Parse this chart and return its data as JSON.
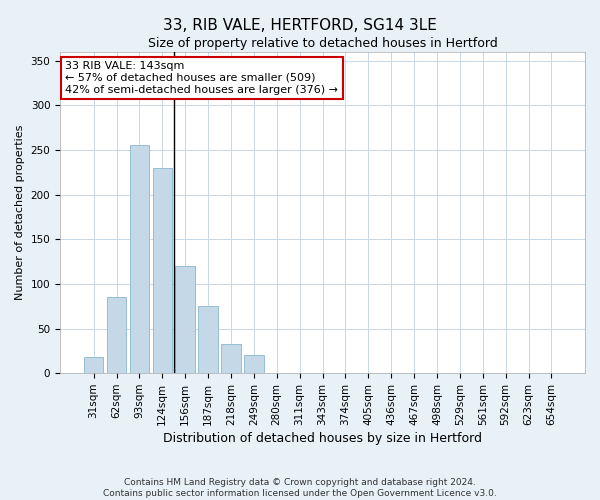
{
  "title": "33, RIB VALE, HERTFORD, SG14 3LE",
  "subtitle": "Size of property relative to detached houses in Hertford",
  "xlabel": "Distribution of detached houses by size in Hertford",
  "ylabel": "Number of detached properties",
  "categories": [
    "31sqm",
    "62sqm",
    "93sqm",
    "124sqm",
    "156sqm",
    "187sqm",
    "218sqm",
    "249sqm",
    "280sqm",
    "311sqm",
    "343sqm",
    "374sqm",
    "405sqm",
    "436sqm",
    "467sqm",
    "498sqm",
    "529sqm",
    "561sqm",
    "592sqm",
    "623sqm",
    "654sqm"
  ],
  "values": [
    18,
    85,
    255,
    230,
    120,
    75,
    33,
    20,
    0,
    0,
    0,
    0,
    0,
    0,
    0,
    0,
    0,
    0,
    0,
    0,
    0
  ],
  "bar_color": "#c5d8e8",
  "bar_edge_color": "#8ab8d0",
  "property_line_x": 3.5,
  "ylim": [
    0,
    360
  ],
  "yticks": [
    0,
    50,
    100,
    150,
    200,
    250,
    300,
    350
  ],
  "annotation_text": "33 RIB VALE: 143sqm\n← 57% of detached houses are smaller (509)\n42% of semi-detached houses are larger (376) →",
  "annotation_box_color": "#ffffff",
  "annotation_box_edge_color": "#cc0000",
  "footer_text": "Contains HM Land Registry data © Crown copyright and database right 2024.\nContains public sector information licensed under the Open Government Licence v3.0.",
  "background_color": "#e8f0f8",
  "plot_background_color": "#ffffff",
  "grid_color": "#c8d8e8",
  "title_fontsize": 11,
  "subtitle_fontsize": 9,
  "ylabel_fontsize": 8,
  "xlabel_fontsize": 9,
  "tick_fontsize": 7.5,
  "annotation_fontsize": 8,
  "footer_fontsize": 6.5
}
